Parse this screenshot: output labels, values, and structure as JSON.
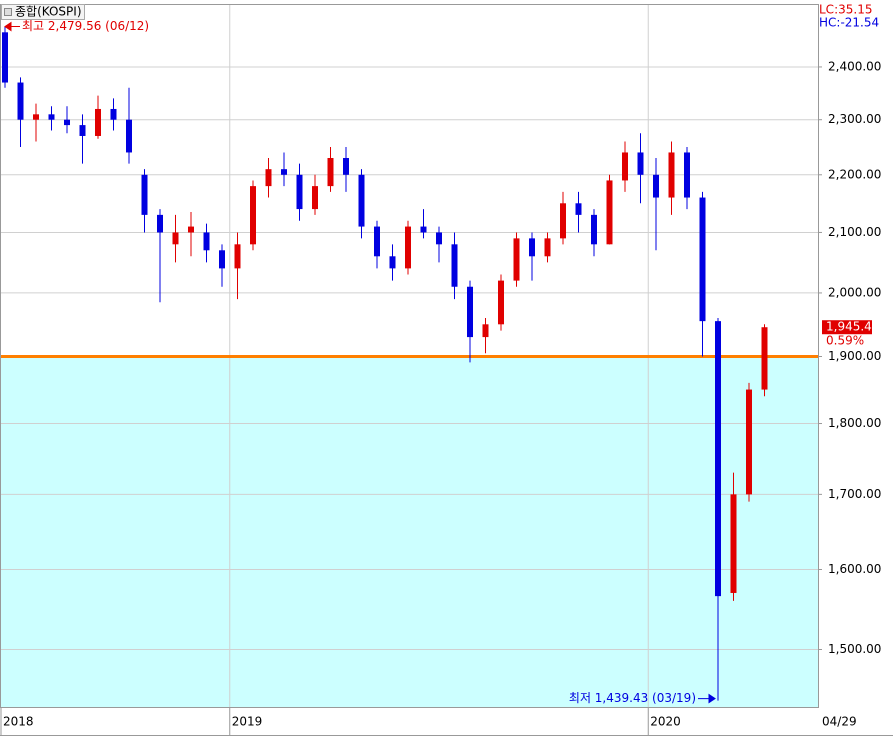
{
  "chart_data": {
    "type": "candlestick",
    "title": "종합(KOSPI)",
    "log_scale": true,
    "grid": true,
    "up_color": "#e00000",
    "down_color": "#0000e0",
    "categories": [
      "2018",
      null,
      null,
      null,
      null,
      null,
      null,
      null,
      null,
      null,
      null,
      null,
      null,
      null,
      null,
      "2019",
      null,
      null,
      null,
      null,
      null,
      null,
      null,
      null,
      null,
      null,
      null,
      null,
      null,
      null,
      null,
      null,
      null,
      null,
      null,
      null,
      null,
      null,
      null,
      null,
      null,
      null,
      "2020",
      null,
      null,
      null,
      null,
      null,
      null,
      null
    ],
    "open": [
      2468,
      2370,
      2300,
      2310,
      2300,
      2290,
      2270,
      2320,
      2300,
      2200,
      2130,
      2080,
      2100,
      2100,
      2070,
      2040,
      2080,
      2180,
      2210,
      2200,
      2140,
      2180,
      2230,
      2200,
      2110,
      2060,
      2040,
      2110,
      2100,
      2080,
      2010,
      1930,
      1950,
      2020,
      2090,
      2060,
      2090,
      2150,
      2130,
      2080,
      2190,
      2240,
      2200,
      2160,
      2240,
      2160,
      1955,
      1570,
      1700,
      1850
    ],
    "high": [
      2479.56,
      2380,
      2330,
      2325,
      2325,
      2310,
      2345,
      2340,
      2360,
      2210,
      2140,
      2130,
      2135,
      2115,
      2080,
      2100,
      2190,
      2230,
      2240,
      2220,
      2200,
      2250,
      2250,
      2210,
      2120,
      2080,
      2120,
      2140,
      2110,
      2100,
      2020,
      1960,
      2030,
      2100,
      2100,
      2100,
      2170,
      2170,
      2140,
      2200,
      2260,
      2275,
      2230,
      2260,
      2250,
      2170,
      1960,
      1730,
      1860,
      1950
    ],
    "low": [
      2360,
      2250,
      2260,
      2280,
      2275,
      2220,
      2265,
      2280,
      2220,
      2100,
      1985,
      2050,
      2060,
      2050,
      2010,
      1990,
      2070,
      2160,
      2180,
      2120,
      2130,
      2170,
      2170,
      2090,
      2040,
      2020,
      2030,
      2090,
      2050,
      1990,
      1891,
      1905,
      1940,
      2010,
      2020,
      2050,
      2080,
      2100,
      2060,
      2080,
      2170,
      2150,
      2070,
      2130,
      2140,
      1900,
      1439.43,
      1560,
      1690,
      1840
    ],
    "close": [
      2370,
      2300,
      2310,
      2300,
      2290,
      2270,
      2320,
      2300,
      2240,
      2130,
      2100,
      2100,
      2110,
      2070,
      2040,
      2080,
      2180,
      2210,
      2200,
      2140,
      2180,
      2230,
      2200,
      2110,
      2060,
      2040,
      2110,
      2100,
      2080,
      2010,
      1930,
      1950,
      2020,
      2090,
      2060,
      2090,
      2150,
      2130,
      2080,
      2190,
      2240,
      2200,
      2160,
      2240,
      2160,
      1955,
      1566,
      1700,
      1850,
      1945.41
    ],
    "ylim": [
      1432,
      2523
    ],
    "yticks": [
      {
        "value": 1500,
        "label": "1,500.00"
      },
      {
        "value": 1600,
        "label": "1,600.00"
      },
      {
        "value": 1700,
        "label": "1,700.00"
      },
      {
        "value": 1800,
        "label": "1,800.00"
      },
      {
        "value": 1900,
        "label": "1,900.00"
      },
      {
        "value": 2000,
        "label": "2,000.00"
      },
      {
        "value": 2100,
        "label": "2,100.00"
      },
      {
        "value": 2200,
        "label": "2,200.00"
      },
      {
        "value": 2300,
        "label": "2,300.00"
      },
      {
        "value": 2400,
        "label": "2,400.00"
      }
    ],
    "hline": 1900,
    "hline_color": "#ff7f00",
    "fill_below_color": "#ccffff",
    "last_date": "04/29",
    "last_price_label": "1,945.41",
    "last_change_label": "0.59%",
    "high_annotation": "최고 2,479.56 (06/12)",
    "low_annotation": "최저 1,439.43 (03/19)",
    "lc_label": "LC:35.15",
    "hc_label": "HC:-21.54"
  }
}
